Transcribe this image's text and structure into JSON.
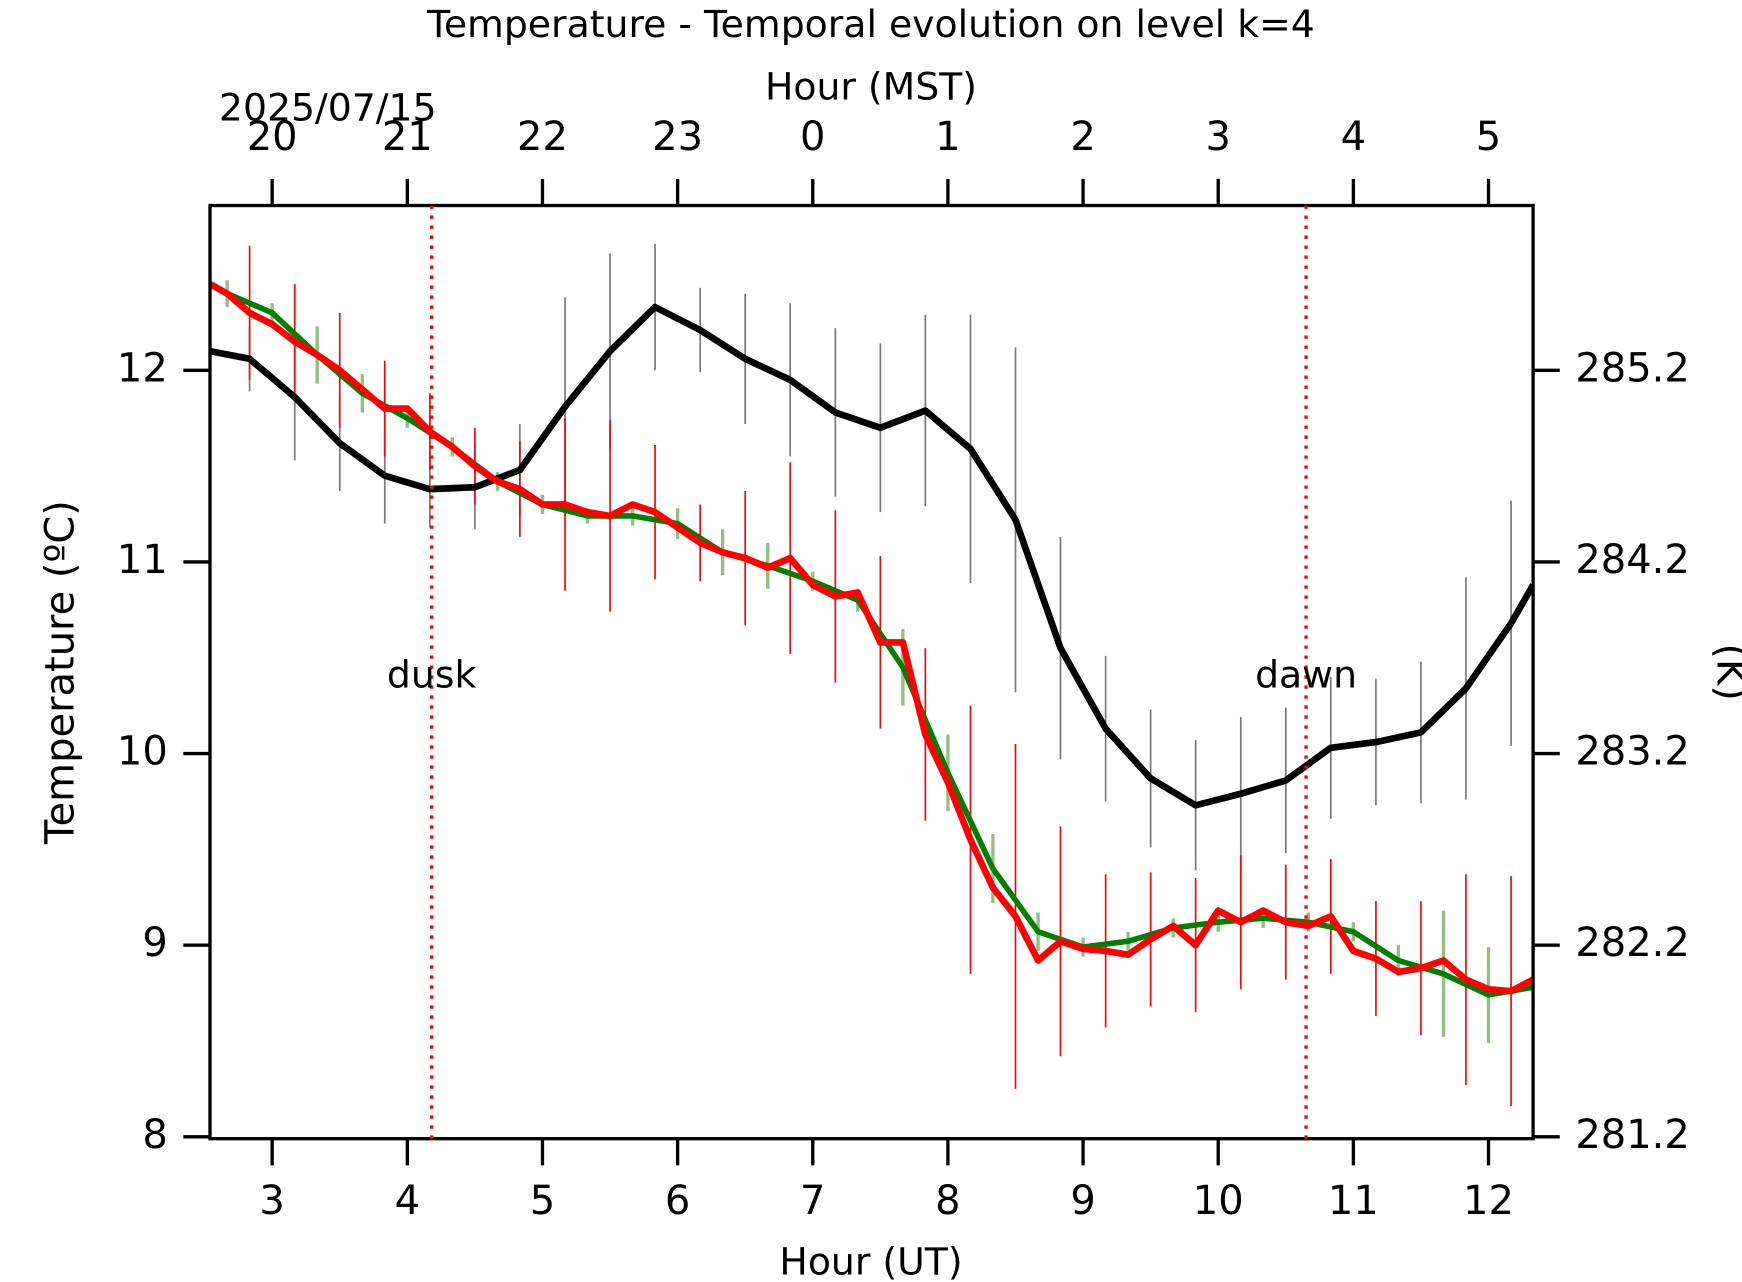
{
  "chart_data": {
    "type": "line",
    "title": "Temperature - Temporal evolution on level k=4",
    "xlabel": "Hour (UT)",
    "x2label": "Hour (MST)",
    "ylabel": "Temperature (ºC)",
    "y2label": "(K)",
    "date_label": "2025/07/15",
    "xlim": [
      2.54,
      12.33
    ],
    "xticks": [
      3,
      4,
      5,
      6,
      7,
      8,
      9,
      10,
      11,
      12
    ],
    "x2ticks": [
      {
        "value": 3,
        "label": "20"
      },
      {
        "value": 4,
        "label": "21"
      },
      {
        "value": 5,
        "label": "22"
      },
      {
        "value": 6,
        "label": "23"
      },
      {
        "value": 7,
        "label": "0"
      },
      {
        "value": 8,
        "label": "1"
      },
      {
        "value": 9,
        "label": "2"
      },
      {
        "value": 10,
        "label": "3"
      },
      {
        "value": 11,
        "label": "4"
      },
      {
        "value": 12,
        "label": "5"
      }
    ],
    "ylim": [
      7.99,
      12.86
    ],
    "yticks": [
      8,
      9,
      10,
      11,
      12
    ],
    "y2lim": [
      281.19,
      286.06
    ],
    "y2ticks": [
      281.2,
      282.2,
      283.2,
      284.2,
      285.2
    ],
    "annotations": [
      {
        "text": "dusk",
        "x": 4.18,
        "y": 10.4,
        "color": "#ff0000"
      },
      {
        "text": "dawn",
        "x": 10.65,
        "y": 10.4,
        "color": "#ff0000"
      }
    ],
    "series": [
      {
        "color": "#000000",
        "error_color": "#777777",
        "x": [
          2.54,
          2.833,
          3.167,
          3.5,
          3.833,
          4.167,
          4.5,
          4.833,
          5.167,
          5.5,
          5.833,
          6.167,
          6.5,
          6.833,
          7.167,
          7.5,
          7.833,
          8.167,
          8.5,
          8.833,
          9.167,
          9.5,
          9.833,
          10.167,
          10.5,
          10.833,
          11.167,
          11.5,
          11.833,
          12.167,
          12.33
        ],
        "values": [
          12.1,
          12.06,
          11.86,
          11.62,
          11.45,
          11.38,
          11.39,
          11.48,
          11.81,
          12.1,
          12.33,
          12.21,
          12.06,
          11.95,
          11.78,
          11.7,
          11.79,
          11.59,
          11.22,
          10.55,
          10.13,
          9.87,
          9.73,
          9.79,
          9.86,
          10.03,
          10.06,
          10.11,
          10.34,
          10.68,
          10.88
        ],
        "errors": [
          null,
          0.17,
          0.33,
          0.25,
          0.25,
          0.2,
          0.22,
          0.24,
          0.57,
          0.51,
          0.33,
          0.22,
          0.34,
          0.4,
          0.44,
          0.44,
          0.5,
          0.7,
          0.9,
          0.58,
          0.38,
          0.36,
          0.34,
          0.4,
          0.38,
          0.37,
          0.33,
          0.37,
          0.58,
          0.64,
          null
        ]
      },
      {
        "color": "#008000",
        "error_color": "#90c080",
        "x": [
          2.54,
          2.667,
          3.0,
          3.333,
          3.667,
          4.0,
          4.333,
          4.667,
          5.0,
          5.333,
          5.667,
          6.0,
          6.333,
          6.667,
          7.0,
          7.333,
          7.667,
          8.0,
          8.333,
          8.667,
          9.0,
          9.333,
          9.667,
          10.0,
          10.333,
          10.667,
          11.0,
          11.333,
          11.667,
          12.0,
          12.33
        ],
        "values": [
          12.45,
          12.4,
          12.3,
          12.08,
          11.88,
          11.75,
          11.6,
          11.42,
          11.3,
          11.24,
          11.24,
          11.2,
          11.05,
          10.98,
          10.9,
          10.8,
          10.45,
          9.9,
          9.4,
          9.07,
          8.99,
          9.02,
          9.09,
          9.12,
          9.14,
          9.12,
          9.07,
          8.92,
          8.85,
          8.74,
          8.78
        ],
        "errors": [
          null,
          0.07,
          0.05,
          0.15,
          0.1,
          0.05,
          0.05,
          0.05,
          0.05,
          0.04,
          0.05,
          0.08,
          0.12,
          0.12,
          0.05,
          0.06,
          0.2,
          0.2,
          0.18,
          0.1,
          0.05,
          0.05,
          0.05,
          0.05,
          0.05,
          0.05,
          0.05,
          0.08,
          0.33,
          0.25,
          null
        ]
      },
      {
        "color": "#ff0000",
        "error_color": "#ff0000",
        "x": [
          2.54,
          2.667,
          2.833,
          3.0,
          3.167,
          3.333,
          3.5,
          3.667,
          3.833,
          4.0,
          4.167,
          4.333,
          4.5,
          4.667,
          4.833,
          5.0,
          5.167,
          5.333,
          5.5,
          5.667,
          5.833,
          6.0,
          6.167,
          6.333,
          6.5,
          6.667,
          6.833,
          7.0,
          7.167,
          7.333,
          7.5,
          7.667,
          7.833,
          8.0,
          8.167,
          8.333,
          8.5,
          8.667,
          8.833,
          9.0,
          9.167,
          9.333,
          9.5,
          9.667,
          9.833,
          10.0,
          10.167,
          10.333,
          10.5,
          10.667,
          10.833,
          11.0,
          11.167,
          11.333,
          11.5,
          11.667,
          11.833,
          12.0,
          12.167,
          12.33
        ],
        "values": [
          12.45,
          12.4,
          12.3,
          12.24,
          12.15,
          12.08,
          12.0,
          11.9,
          11.8,
          11.8,
          11.68,
          11.6,
          11.5,
          11.42,
          11.38,
          11.3,
          11.3,
          11.26,
          11.24,
          11.3,
          11.26,
          11.18,
          11.1,
          11.05,
          11.02,
          10.97,
          11.02,
          10.88,
          10.82,
          10.84,
          10.58,
          10.58,
          10.1,
          9.85,
          9.55,
          9.3,
          9.15,
          8.92,
          9.02,
          8.98,
          8.97,
          8.95,
          9.03,
          9.1,
          9.0,
          9.18,
          9.12,
          9.18,
          9.12,
          9.1,
          9.15,
          8.97,
          8.93,
          8.86,
          8.88,
          8.92,
          8.82,
          8.77,
          8.76,
          8.82
        ],
        "errors": [
          null,
          null,
          0.35,
          null,
          0.3,
          null,
          0.3,
          null,
          0.25,
          null,
          0.2,
          null,
          0.2,
          null,
          0.25,
          null,
          0.45,
          null,
          0.5,
          null,
          0.35,
          null,
          0.2,
          null,
          0.35,
          null,
          0.5,
          null,
          0.45,
          null,
          0.45,
          null,
          0.45,
          null,
          0.7,
          null,
          0.9,
          null,
          0.6,
          null,
          0.4,
          null,
          0.35,
          null,
          0.35,
          null,
          0.35,
          null,
          0.3,
          null,
          0.3,
          null,
          0.3,
          null,
          0.35,
          null,
          0.55,
          null,
          0.6,
          null
        ]
      }
    ]
  }
}
